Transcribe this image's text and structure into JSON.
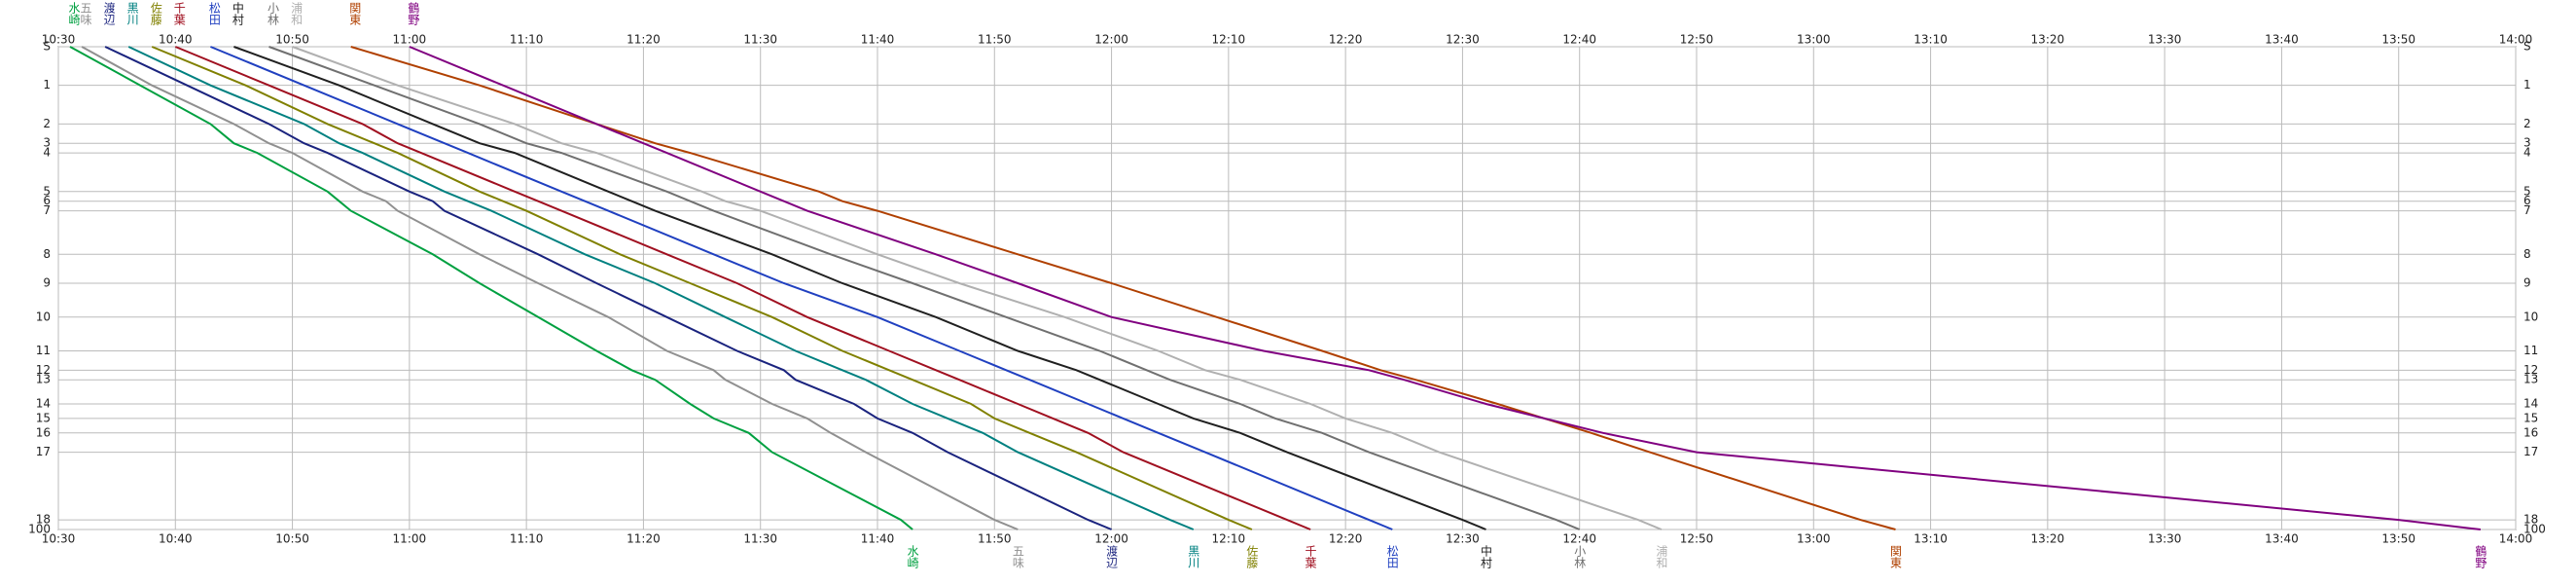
{
  "chart_data": {
    "type": "line",
    "xlim": [
      630,
      840
    ],
    "xticks": [
      {
        "value": 630,
        "label": "10:30"
      },
      {
        "value": 640,
        "label": "10:40"
      },
      {
        "value": 650,
        "label": "10:50"
      },
      {
        "value": 660,
        "label": "11:00"
      },
      {
        "value": 670,
        "label": "11:10"
      },
      {
        "value": 680,
        "label": "11:20"
      },
      {
        "value": 690,
        "label": "11:30"
      },
      {
        "value": 700,
        "label": "11:40"
      },
      {
        "value": 710,
        "label": "11:50"
      },
      {
        "value": 720,
        "label": "12:00"
      },
      {
        "value": 730,
        "label": "12:10"
      },
      {
        "value": 740,
        "label": "12:20"
      },
      {
        "value": 750,
        "label": "12:30"
      },
      {
        "value": 760,
        "label": "12:40"
      },
      {
        "value": 770,
        "label": "12:50"
      },
      {
        "value": 780,
        "label": "13:00"
      },
      {
        "value": 790,
        "label": "13:10"
      },
      {
        "value": 800,
        "label": "13:20"
      },
      {
        "value": 810,
        "label": "13:30"
      },
      {
        "value": 820,
        "label": "13:40"
      },
      {
        "value": 830,
        "label": "13:50"
      },
      {
        "value": 840,
        "label": "14:00"
      }
    ],
    "ylim": [
      0,
      100
    ],
    "yticks": [
      {
        "value": 0,
        "label": "S"
      },
      {
        "value": 8,
        "label": "1"
      },
      {
        "value": 16,
        "label": "2"
      },
      {
        "value": 20,
        "label": "3"
      },
      {
        "value": 22,
        "label": "4"
      },
      {
        "value": 30,
        "label": "5"
      },
      {
        "value": 32,
        "label": "6"
      },
      {
        "value": 34,
        "label": "7"
      },
      {
        "value": 43,
        "label": "8"
      },
      {
        "value": 49,
        "label": "9"
      },
      {
        "value": 56,
        "label": "10"
      },
      {
        "value": 63,
        "label": "11"
      },
      {
        "value": 67,
        "label": "12"
      },
      {
        "value": 69,
        "label": "13"
      },
      {
        "value": 74,
        "label": "14"
      },
      {
        "value": 77,
        "label": "15"
      },
      {
        "value": 80,
        "label": "16"
      },
      {
        "value": 84,
        "label": "17"
      },
      {
        "value": 98,
        "label": "18"
      },
      100
    ],
    "grid": true,
    "series": [
      {
        "name": "水崎",
        "color": "#00a040",
        "values": [
          631,
          637,
          643,
          645,
          647,
          653,
          654,
          655,
          662,
          666,
          671,
          676,
          679,
          681,
          684,
          686,
          689,
          691,
          702,
          703
        ]
      },
      {
        "name": "五味",
        "color": "#909090",
        "values": [
          632,
          638,
          645,
          648,
          650,
          656,
          658,
          659,
          666,
          671,
          677,
          682,
          686,
          687,
          691,
          694,
          696,
          699,
          710,
          712
        ]
      },
      {
        "name": "渡辺",
        "color": "#1a237e",
        "values": [
          634,
          641,
          648,
          651,
          653,
          660,
          662,
          663,
          671,
          676,
          682,
          688,
          692,
          693,
          698,
          700,
          703,
          706,
          718,
          720
        ]
      },
      {
        "name": "黒川",
        "color": "#008080",
        "values": [
          636,
          643,
          651,
          654,
          656,
          663,
          665,
          667,
          675,
          681,
          687,
          693,
          697,
          699,
          703,
          706,
          709,
          712,
          725,
          727
        ]
      },
      {
        "name": "佐藤",
        "color": "#808000",
        "values": [
          638,
          646,
          653,
          657,
          659,
          666,
          668,
          670,
          678,
          684,
          691,
          697,
          701,
          703,
          708,
          710,
          713,
          717,
          730,
          732
        ]
      },
      {
        "name": "千葉",
        "color": "#a01020",
        "values": [
          640,
          648,
          656,
          659,
          661,
          669,
          671,
          673,
          682,
          688,
          694,
          701,
          705,
          707,
          712,
          715,
          718,
          721,
          735,
          737
        ]
      },
      {
        "name": "松田",
        "color": "#2040c0",
        "values": [
          643,
          651,
          659,
          663,
          665,
          673,
          675,
          677,
          686,
          692,
          700,
          707,
          711,
          713,
          718,
          721,
          724,
          728,
          742,
          744
        ]
      },
      {
        "name": "中村",
        "color": "#202020",
        "values": [
          645,
          654,
          662,
          666,
          669,
          677,
          679,
          681,
          691,
          697,
          705,
          712,
          717,
          719,
          724,
          727,
          731,
          735,
          750,
          752
        ]
      },
      {
        "name": "小林",
        "color": "#707070",
        "values": [
          648,
          657,
          666,
          670,
          673,
          682,
          684,
          686,
          696,
          703,
          711,
          719,
          723,
          725,
          731,
          734,
          738,
          742,
          758,
          760
        ]
      },
      {
        "name": "浦和",
        "color": "#b0b0b0",
        "values": [
          650,
          659,
          669,
          673,
          676,
          685,
          687,
          690,
          700,
          707,
          716,
          724,
          728,
          731,
          737,
          740,
          744,
          748,
          765,
          767
        ]
      },
      {
        "name": "関東",
        "color": "#b04000",
        "values": [
          655,
          666,
          676,
          681,
          684,
          695,
          697,
          700,
          712,
          720,
          729,
          738,
          743,
          746,
          753,
          757,
          761,
          766,
          784,
          787
        ]
      },
      {
        "name": "鶴野",
        "color": "#800080",
        "values": [
          660,
          668,
          676,
          680,
          682,
          690,
          692,
          694,
          705,
          712,
          720,
          733,
          742,
          745,
          752,
          757,
          762,
          770,
          830,
          837
        ]
      }
    ]
  }
}
